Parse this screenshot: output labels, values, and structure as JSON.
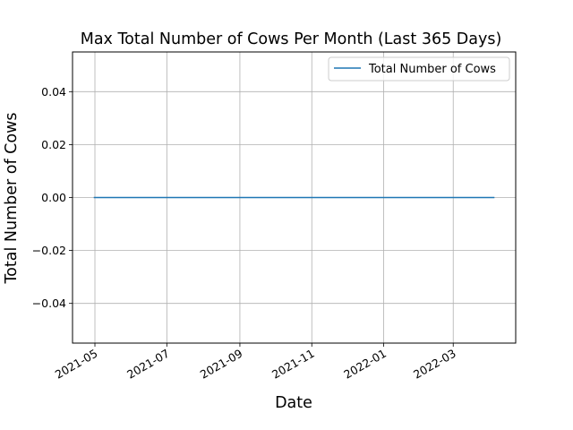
{
  "chart_data": {
    "type": "line",
    "title": "Max Total Number of Cows Per Month (Last 365 Days)",
    "xlabel": "Date",
    "ylabel": "Total Number of Cows",
    "x_ticks": [
      "2021-05",
      "2021-07",
      "2021-09",
      "2021-11",
      "2022-01",
      "2022-03"
    ],
    "y_ticks": [
      "0.04",
      "0.02",
      "0.00",
      "−0.02",
      "−0.04"
    ],
    "y_tick_values": [
      0.04,
      0.02,
      0.0,
      -0.02,
      -0.04
    ],
    "xlim": [
      "2021-04-12",
      "2022-04-23"
    ],
    "ylim": [
      -0.055,
      0.055
    ],
    "grid": true,
    "legend_position": "upper-right",
    "series": [
      {
        "name": "Total Number of Cows",
        "color": "#1f77b4",
        "x": [
          "2021-04-30",
          "2021-05-31",
          "2021-06-30",
          "2021-07-31",
          "2021-08-31",
          "2021-09-30",
          "2021-10-31",
          "2021-11-30",
          "2021-12-31",
          "2022-01-31",
          "2022-02-28",
          "2022-03-31",
          "2022-04-05"
        ],
        "y": [
          0,
          0,
          0,
          0,
          0,
          0,
          0,
          0,
          0,
          0,
          0,
          0,
          0
        ]
      }
    ]
  }
}
